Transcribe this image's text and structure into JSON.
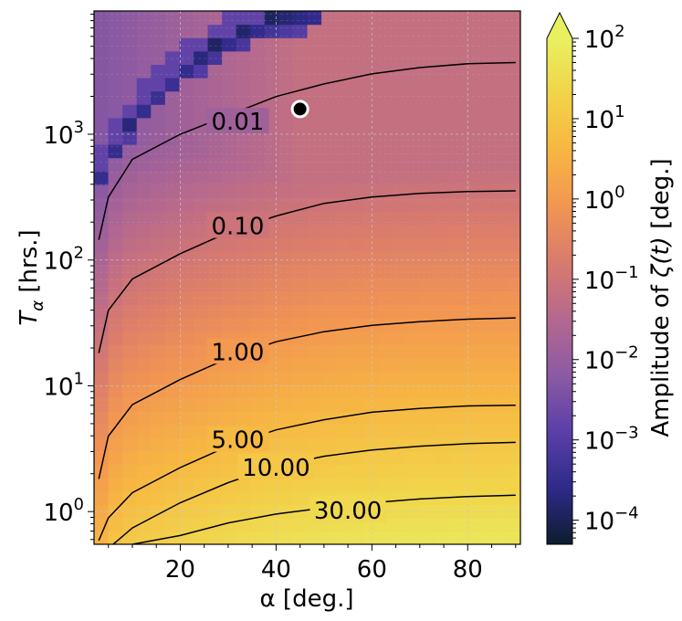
{
  "chart_data": {
    "type": "heatmap",
    "xlabel": "α [deg.]",
    "ylabel_main": "T",
    "ylabel_sub": "α",
    "ylabel_unit": " [hrs.]",
    "colorbar_label_pre": "Amplitude of ",
    "colorbar_label_sym": "ζ(t)",
    "colorbar_label_post": " [deg.]",
    "x_range": [
      2,
      91
    ],
    "y_range_log10": [
      -0.26,
      3.98
    ],
    "y_scale": "log",
    "x_ticks": [
      {
        "value": 20,
        "label": "20"
      },
      {
        "value": 40,
        "label": "40"
      },
      {
        "value": 60,
        "label": "60"
      },
      {
        "value": 80,
        "label": "80"
      }
    ],
    "y_ticks": [
      {
        "exp": 0,
        "base": "10",
        "sup": "0"
      },
      {
        "exp": 1,
        "base": "10",
        "sup": "1"
      },
      {
        "exp": 2,
        "base": "10",
        "sup": "2"
      },
      {
        "exp": 3,
        "base": "10",
        "sup": "3"
      }
    ],
    "colorbar_ticks": [
      {
        "exp": -4,
        "base": "10",
        "sup": "−4"
      },
      {
        "exp": -3,
        "base": "10",
        "sup": "−3"
      },
      {
        "exp": -2,
        "base": "10",
        "sup": "−2"
      },
      {
        "exp": -1,
        "base": "10",
        "sup": "−1"
      },
      {
        "exp": 0,
        "base": "10",
        "sup": "0"
      },
      {
        "exp": 1,
        "base": "10",
        "sup": "1"
      },
      {
        "exp": 2,
        "base": "10",
        "sup": "2"
      }
    ],
    "colorbar_range_log10": [
      -4.3,
      2.0
    ],
    "colorbar_extend": "max",
    "colormap": [
      "#0c1d2e",
      "#2f2a8a",
      "#5a3fa8",
      "#8b5aa3",
      "#b4688f",
      "#d87a6e",
      "#f29552",
      "#f7b642",
      "#f2d34a",
      "#e8f060"
    ],
    "contours": [
      {
        "label": "0.01",
        "level": 0.01,
        "label_at": [
          32,
          3.1
        ],
        "points": [
          [
            3,
            2.16
          ],
          [
            5,
            2.5
          ],
          [
            10,
            2.8
          ],
          [
            20,
            3.0
          ],
          [
            30,
            3.15
          ],
          [
            40,
            3.3
          ],
          [
            50,
            3.4
          ],
          [
            60,
            3.48
          ],
          [
            70,
            3.53
          ],
          [
            80,
            3.56
          ],
          [
            90,
            3.57
          ]
        ]
      },
      {
        "label": "0.10",
        "level": 0.1,
        "label_at": [
          32,
          2.27
        ],
        "points": [
          [
            3,
            1.26
          ],
          [
            5,
            1.6
          ],
          [
            10,
            1.85
          ],
          [
            20,
            2.05
          ],
          [
            30,
            2.22
          ],
          [
            40,
            2.35
          ],
          [
            50,
            2.45
          ],
          [
            60,
            2.5
          ],
          [
            70,
            2.53
          ],
          [
            80,
            2.545
          ],
          [
            90,
            2.55
          ]
        ]
      },
      {
        "label": "1.00",
        "level": 1.0,
        "label_at": [
          32,
          1.27
        ],
        "points": [
          [
            3,
            0.26
          ],
          [
            5,
            0.6
          ],
          [
            10,
            0.85
          ],
          [
            20,
            1.05
          ],
          [
            30,
            1.22
          ],
          [
            40,
            1.35
          ],
          [
            50,
            1.43
          ],
          [
            60,
            1.48
          ],
          [
            70,
            1.51
          ],
          [
            80,
            1.53
          ],
          [
            90,
            1.54
          ]
        ]
      },
      {
        "label": "5.00",
        "level": 5.0,
        "label_at": [
          32,
          0.57
        ],
        "points": [
          [
            3,
            -0.23
          ],
          [
            5,
            -0.05
          ],
          [
            10,
            0.15
          ],
          [
            20,
            0.35
          ],
          [
            30,
            0.52
          ],
          [
            40,
            0.65
          ],
          [
            50,
            0.73
          ],
          [
            60,
            0.79
          ],
          [
            70,
            0.82
          ],
          [
            80,
            0.84
          ],
          [
            90,
            0.845
          ]
        ]
      },
      {
        "label": "10.00",
        "level": 10.0,
        "label_at": [
          40,
          0.35
        ],
        "points": [
          [
            6,
            -0.26
          ],
          [
            10,
            -0.13
          ],
          [
            20,
            0.07
          ],
          [
            30,
            0.23
          ],
          [
            40,
            0.36
          ],
          [
            50,
            0.44
          ],
          [
            60,
            0.49
          ],
          [
            70,
            0.52
          ],
          [
            80,
            0.54
          ],
          [
            90,
            0.55
          ]
        ]
      },
      {
        "label": "30.00",
        "level": 30.0,
        "label_at": [
          55,
          0.01
        ],
        "points": [
          [
            10,
            -0.26
          ],
          [
            20,
            -0.19
          ],
          [
            30,
            -0.09
          ],
          [
            40,
            -0.02
          ],
          [
            50,
            0.03
          ],
          [
            60,
            0.07
          ],
          [
            70,
            0.1
          ],
          [
            80,
            0.12
          ],
          [
            90,
            0.13
          ]
        ]
      }
    ],
    "minimum_band": [
      [
        3,
        2.7
      ],
      [
        5,
        2.85
      ],
      [
        8,
        3.05
      ],
      [
        12,
        3.25
      ],
      [
        17,
        3.45
      ],
      [
        22,
        3.6
      ],
      [
        28,
        3.75
      ],
      [
        34,
        3.86
      ],
      [
        40,
        3.95
      ],
      [
        45,
        3.98
      ]
    ],
    "marker": {
      "x": 45,
      "y": 3.2,
      "fill": "#000000",
      "edge": "#ffffff"
    },
    "grid": true
  }
}
